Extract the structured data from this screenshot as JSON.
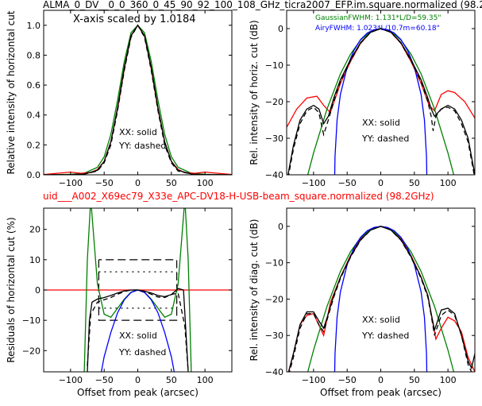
{
  "figure": {
    "suptitle": "ALMA_0_DV__0_0_360_0_45_90_92_100_108_GHz_ticra2007_EFP.im.square.normalized (98.2",
    "midtitle": "uid___A002_X69ec79_X33e_APC-DV18-H-USB-beam_square.normalized (98.2GHz)",
    "colors": {
      "red": "#ff0000",
      "green": "#008000",
      "blue": "#0000ff",
      "black": "#000000",
      "midtitle": "#ff0000"
    }
  },
  "chart_data": [
    {
      "id": "tl",
      "type": "line",
      "ylabel": "Relative intensity of horizontal cut",
      "xlabel": "",
      "xlim": [
        -140,
        140
      ],
      "ylim": [
        0,
        1.1
      ],
      "xticks": [
        "−100",
        "−50",
        "0",
        "50",
        "100"
      ],
      "xtick_values": [
        -100,
        -50,
        0,
        50,
        100
      ],
      "yticks": [
        "0.0",
        "0.2",
        "0.4",
        "0.6",
        "0.8",
        "1.0"
      ],
      "ytick_values": [
        0,
        0.2,
        0.4,
        0.6,
        0.8,
        1.0
      ],
      "annotations": {
        "note": "X-axis scaled by 1.0184",
        "solid": "XX: solid",
        "dashed": "YY: dashed"
      },
      "series": [
        {
          "color": "green",
          "dash": "",
          "x": [
            -140,
            -100,
            -80,
            -60,
            -50,
            -40,
            -30,
            -20,
            -10,
            0,
            10,
            20,
            30,
            40,
            50,
            60,
            80,
            100,
            140
          ],
          "y": [
            0,
            0.003,
            0.01,
            0.05,
            0.12,
            0.27,
            0.5,
            0.76,
            0.95,
            1.0,
            0.95,
            0.76,
            0.5,
            0.27,
            0.12,
            0.05,
            0.01,
            0.003,
            0
          ]
        },
        {
          "color": "red",
          "dash": "",
          "x": [
            -140,
            -120,
            -100,
            -85,
            -70,
            -60,
            -50,
            -40,
            -30,
            -20,
            -10,
            0,
            10,
            20,
            30,
            40,
            50,
            60,
            70,
            85,
            100,
            120,
            140
          ],
          "y": [
            0.002,
            0.01,
            0.018,
            0.01,
            0.015,
            0.035,
            0.09,
            0.22,
            0.44,
            0.71,
            0.93,
            1.0,
            0.93,
            0.71,
            0.44,
            0.22,
            0.09,
            0.035,
            0.015,
            0.01,
            0.018,
            0.01,
            0.002
          ]
        },
        {
          "color": "black",
          "dash": "",
          "x": [
            -140,
            -100,
            -80,
            -60,
            -50,
            -40,
            -30,
            -20,
            -10,
            0,
            10,
            20,
            30,
            40,
            50,
            60,
            80,
            100,
            140
          ],
          "y": [
            0,
            0.001,
            0.005,
            0.03,
            0.09,
            0.22,
            0.45,
            0.72,
            0.93,
            1.0,
            0.93,
            0.72,
            0.45,
            0.22,
            0.09,
            0.03,
            0.005,
            0.001,
            0
          ]
        },
        {
          "color": "black",
          "dash": "6,4",
          "x": [
            -140,
            -100,
            -80,
            -60,
            -50,
            -40,
            -30,
            -20,
            -10,
            0,
            10,
            20,
            30,
            40,
            50,
            60,
            80,
            100,
            140
          ],
          "y": [
            0,
            0.001,
            0.005,
            0.025,
            0.08,
            0.2,
            0.43,
            0.7,
            0.92,
            1.0,
            0.92,
            0.7,
            0.43,
            0.2,
            0.08,
            0.025,
            0.005,
            0.001,
            0
          ]
        }
      ]
    },
    {
      "id": "tr",
      "type": "line",
      "ylabel": "Rel. intensity of horiz. cut (dB)",
      "xlabel": "",
      "xlim": [
        -140,
        140
      ],
      "ylim": [
        -40,
        5
      ],
      "xticks": [
        "−100",
        "−50",
        "0",
        "50",
        "100"
      ],
      "xtick_values": [
        -100,
        -50,
        0,
        50,
        100
      ],
      "yticks": [
        "0",
        "−10",
        "−20",
        "−30",
        "−40"
      ],
      "ytick_values": [
        0,
        -10,
        -20,
        -30,
        -40
      ],
      "annotations": {
        "solid": "XX: solid",
        "dashed": "YY: dashed"
      },
      "legend": [
        {
          "text": "GaussianFWHM: 1.131*L/D=59.35\"",
          "color": "green"
        },
        {
          "text": "AiryFWHM: 1.023*L/10.7m=60.18\"",
          "color": "blue"
        }
      ],
      "series": [
        {
          "color": "red",
          "dash": "",
          "x": [
            -140,
            -125,
            -110,
            -95,
            -85,
            -75,
            -60,
            -45,
            -30,
            -15,
            0,
            15,
            30,
            45,
            60,
            72,
            80,
            90,
            100,
            110,
            125,
            140
          ],
          "y": [
            -27,
            -22,
            -19,
            -18.5,
            -21,
            -23,
            -15,
            -9,
            -4,
            -1,
            0,
            -1,
            -4,
            -9,
            -15,
            -21,
            -22.5,
            -18,
            -17,
            -17.5,
            -20,
            -24.5
          ]
        },
        {
          "color": "green",
          "dash": "",
          "x": [
            -120,
            -100,
            -80,
            -60,
            -45,
            -30,
            -15,
            0,
            15,
            30,
            45,
            60,
            80,
            100,
            120
          ],
          "y": [
            -48,
            -34,
            -22,
            -12.4,
            -7,
            -3.1,
            -0.8,
            0,
            -0.8,
            -3.1,
            -7,
            -12.4,
            -22,
            -34,
            -48
          ]
        },
        {
          "color": "blue",
          "dash": "",
          "x": [
            -69,
            -68,
            -65,
            -60,
            -50,
            -40,
            -30,
            -20,
            -10,
            0,
            10,
            20,
            30,
            40,
            50,
            60,
            65,
            68,
            69
          ],
          "y": [
            -45,
            -35,
            -25,
            -18,
            -10.5,
            -6,
            -3,
            -1.2,
            -0.3,
            0,
            -0.3,
            -1.2,
            -3,
            -6,
            -10.5,
            -18,
            -25,
            -35,
            -45
          ]
        },
        {
          "color": "black",
          "dash": "",
          "x": [
            -140,
            -130,
            -120,
            -110,
            -100,
            -92,
            -85,
            -78,
            -70,
            -60,
            -45,
            -30,
            -15,
            0,
            15,
            30,
            45,
            60,
            70,
            75,
            80,
            90,
            100,
            110,
            120,
            130,
            140
          ],
          "y": [
            -42,
            -32,
            -25,
            -22,
            -21,
            -22,
            -26,
            -24,
            -19,
            -14,
            -8.5,
            -3.8,
            -1,
            0,
            -1,
            -3.8,
            -8.5,
            -14,
            -19,
            -22,
            -24,
            -22,
            -21,
            -22,
            -25,
            -30,
            -40
          ]
        },
        {
          "color": "black",
          "dash": "6,4",
          "x": [
            -140,
            -130,
            -120,
            -110,
            -100,
            -92,
            -85,
            -78,
            -70,
            -60,
            -45,
            -30,
            -15,
            0,
            15,
            30,
            45,
            60,
            70,
            75,
            78,
            82,
            90,
            100,
            110,
            120,
            130,
            140
          ],
          "y": [
            -43,
            -33,
            -26,
            -22.5,
            -21.5,
            -23,
            -29,
            -25,
            -20,
            -14.5,
            -8.8,
            -4,
            -1,
            0,
            -1,
            -4,
            -8.8,
            -14.5,
            -20,
            -24,
            -28,
            -24,
            -22,
            -21.5,
            -22.5,
            -26,
            -31,
            -41
          ]
        }
      ]
    },
    {
      "id": "bl",
      "type": "line",
      "ylabel": "Residuals of horizontal cut (%)",
      "xlabel": "Offset from peak (arcsec)",
      "xlim": [
        -140,
        140
      ],
      "ylim": [
        -27,
        27
      ],
      "xticks": [
        "−100",
        "−50",
        "0",
        "50",
        "100"
      ],
      "xtick_values": [
        -100,
        -50,
        0,
        50,
        100
      ],
      "yticks": [
        "20",
        "10",
        "0",
        "−10",
        "−20"
      ],
      "ytick_values": [
        20,
        10,
        0,
        -10,
        -20
      ],
      "annotations": {
        "solid": "XX: solid",
        "dashed": "YY: dashed"
      },
      "series": [
        {
          "color": "red",
          "dash": "",
          "x": [
            -140,
            140
          ],
          "y": [
            0,
            0
          ]
        },
        {
          "color": "green",
          "dash": "",
          "x": [
            -80,
            -75,
            -70,
            -60,
            -50,
            -40,
            -30,
            -20,
            -10,
            0,
            10,
            20,
            30,
            40,
            50,
            60,
            70,
            75,
            80
          ],
          "y": [
            -30,
            10,
            30,
            2,
            -8,
            -9,
            -6,
            -3,
            -0.7,
            0,
            -0.7,
            -3,
            -6,
            -9,
            -8,
            2,
            30,
            10,
            -30
          ]
        },
        {
          "color": "blue",
          "dash": "",
          "x": [
            -55,
            -50,
            -40,
            -30,
            -20,
            -10,
            0,
            10,
            20,
            30,
            40,
            50,
            55
          ],
          "y": [
            -28,
            -22,
            -14,
            -7.5,
            -3.2,
            -0.8,
            0,
            -0.8,
            -3.2,
            -7.5,
            -14,
            -22,
            -28
          ]
        },
        {
          "color": "black",
          "dash": "",
          "x": [
            -75,
            -72,
            -68,
            -60,
            -50,
            -40,
            -30,
            -20,
            -10,
            0,
            10,
            20,
            30,
            40,
            50,
            60,
            68,
            72,
            75
          ],
          "y": [
            -27,
            -10,
            -4,
            -3,
            -2.5,
            -1.8,
            -1,
            -0.3,
            0,
            0,
            -0.4,
            -1,
            -1.8,
            -2.2,
            -1.5,
            0.5,
            0,
            -15,
            -27
          ]
        },
        {
          "color": "black",
          "dash": "6,4",
          "x": [
            -75,
            -70,
            -60,
            -50,
            -40,
            -30,
            -20,
            -10,
            0,
            10,
            20,
            30,
            40,
            50,
            60,
            70,
            75
          ],
          "y": [
            -25,
            -8,
            -4,
            -3.2,
            -2.5,
            -1.4,
            -0.5,
            0,
            0,
            -0.5,
            -1.4,
            -2.3,
            -2.5,
            -1.5,
            -1,
            -12,
            -27
          ]
        }
      ],
      "guides": [
        {
          "dash": "10,5",
          "x": [
            -58,
            -58,
            58,
            58,
            -58
          ],
          "y": [
            10,
            -10,
            -10,
            10,
            10
          ]
        },
        {
          "dash": "2,5",
          "x": [
            -58,
            58
          ],
          "y": [
            6,
            6
          ]
        },
        {
          "dash": "2,5",
          "x": [
            -58,
            58
          ],
          "y": [
            -6,
            -6
          ]
        },
        {
          "dash": "2,5",
          "x": [
            -58,
            -58
          ],
          "y": [
            -6,
            6
          ]
        },
        {
          "dash": "2,5",
          "x": [
            58,
            58
          ],
          "y": [
            -6,
            6
          ]
        }
      ]
    },
    {
      "id": "br",
      "type": "line",
      "ylabel": "Rel. intensity of diag. cut (dB)",
      "xlabel": "Offset from peak (arcsec)",
      "xlim": [
        -140,
        140
      ],
      "ylim": [
        -40,
        5
      ],
      "xticks": [
        "−100",
        "−50",
        "0",
        "50",
        "100"
      ],
      "xtick_values": [
        -100,
        -50,
        0,
        50,
        100
      ],
      "yticks": [
        "0",
        "−10",
        "−20",
        "−30",
        "−40"
      ],
      "ytick_values": [
        0,
        -10,
        -20,
        -30,
        -40
      ],
      "annotations": {
        "solid": "XX: solid",
        "dashed": "YY: dashed"
      },
      "series": [
        {
          "color": "red",
          "dash": "",
          "x": [
            -140,
            -130,
            -120,
            -110,
            -100,
            -85,
            -75,
            -60,
            -45,
            -30,
            -15,
            0,
            15,
            30,
            45,
            60,
            70,
            75,
            82,
            90,
            100,
            110,
            120,
            130,
            140
          ],
          "y": [
            -42,
            -35,
            -27,
            -24.5,
            -24,
            -30,
            -21,
            -14,
            -8,
            -3.5,
            -0.9,
            0,
            -0.9,
            -3.5,
            -8,
            -14,
            -19,
            -24,
            -31,
            -28,
            -25,
            -26,
            -29,
            -36,
            -40
          ]
        },
        {
          "color": "green",
          "dash": "",
          "x": [
            -120,
            -100,
            -80,
            -60,
            -45,
            -30,
            -15,
            0,
            15,
            30,
            45,
            60,
            80,
            100,
            120
          ],
          "y": [
            -48,
            -34,
            -22,
            -12.4,
            -7,
            -3.1,
            -0.8,
            0,
            -0.8,
            -3.1,
            -7,
            -12.4,
            -22,
            -34,
            -48
          ]
        },
        {
          "color": "blue",
          "dash": "",
          "x": [
            -69,
            -68,
            -65,
            -60,
            -50,
            -40,
            -30,
            -20,
            -10,
            0,
            10,
            20,
            30,
            40,
            50,
            60,
            65,
            68,
            69
          ],
          "y": [
            -45,
            -35,
            -25,
            -18,
            -10.5,
            -6,
            -3,
            -1.2,
            -0.3,
            0,
            -0.3,
            -1.2,
            -3,
            -6,
            -10.5,
            -18,
            -25,
            -35,
            -45
          ]
        },
        {
          "color": "black",
          "dash": "",
          "x": [
            -140,
            -130,
            -120,
            -110,
            -100,
            -92,
            -85,
            -78,
            -70,
            -60,
            -45,
            -30,
            -15,
            0,
            15,
            30,
            45,
            60,
            70,
            75,
            80,
            90,
            100,
            110,
            120,
            130,
            135,
            140
          ],
          "y": [
            -42,
            -35,
            -27,
            -23.5,
            -23.5,
            -26,
            -28,
            -24,
            -19,
            -14,
            -8.3,
            -3.7,
            -1,
            0,
            -1,
            -3.7,
            -8.3,
            -14,
            -19,
            -24,
            -28.5,
            -23,
            -22.5,
            -24,
            -30,
            -37,
            -39,
            -35
          ]
        },
        {
          "color": "black",
          "dash": "6,4",
          "x": [
            -140,
            -130,
            -120,
            -110,
            -100,
            -92,
            -85,
            -78,
            -70,
            -60,
            -45,
            -30,
            -15,
            0,
            15,
            30,
            45,
            60,
            70,
            75,
            80,
            90,
            100,
            110,
            120,
            130,
            140
          ],
          "y": [
            -43,
            -36,
            -28,
            -24,
            -24,
            -27,
            -29,
            -24.5,
            -19.5,
            -14.3,
            -8.5,
            -3.8,
            -1,
            0,
            -1,
            -3.8,
            -8.5,
            -14.3,
            -19.5,
            -24.5,
            -30,
            -24.5,
            -23,
            -24.5,
            -30,
            -38,
            -42
          ]
        }
      ]
    }
  ]
}
